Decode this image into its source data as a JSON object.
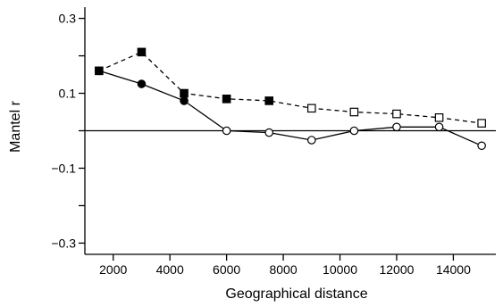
{
  "chart_data": {
    "type": "line",
    "xlabel": "Geographical distance",
    "ylabel": "Mantel r",
    "xlim": [
      1000,
      15500
    ],
    "ylim": [
      -0.33,
      0.33
    ],
    "x_ticks": [
      2000,
      4000,
      6000,
      8000,
      10000,
      12000,
      14000
    ],
    "y_ticks": [
      -0.3,
      -0.1,
      0.1,
      0.3
    ],
    "y_minor_ticks": [
      -0.2,
      0,
      0.2
    ],
    "reference_line_y": 0,
    "grid": false,
    "series": [
      {
        "marker": "circle",
        "line_style": "solid",
        "x": [
          1500,
          3000,
          4500,
          6000,
          7500,
          9000,
          10500,
          12000,
          13500,
          15000
        ],
        "y": [
          0.16,
          0.125,
          0.08,
          0.0,
          -0.005,
          -0.025,
          0.0,
          0.01,
          0.01,
          -0.04
        ],
        "filled": [
          true,
          true,
          true,
          false,
          false,
          false,
          false,
          false,
          false,
          false
        ]
      },
      {
        "marker": "square",
        "line_style": "dashed",
        "x": [
          1500,
          3000,
          4500,
          6000,
          7500,
          9000,
          10500,
          12000,
          13500,
          15000
        ],
        "y": [
          0.16,
          0.21,
          0.1,
          0.085,
          0.08,
          0.06,
          0.05,
          0.045,
          0.035,
          0.02
        ],
        "filled": [
          true,
          true,
          true,
          true,
          true,
          false,
          false,
          false,
          false,
          false
        ]
      }
    ],
    "tick_labels": {
      "x": [
        "2000",
        "4000",
        "6000",
        "8000",
        "10000",
        "12000",
        "14000"
      ],
      "y": [
        "−0.3",
        "−0.1",
        "0.1",
        "0.3"
      ]
    }
  }
}
